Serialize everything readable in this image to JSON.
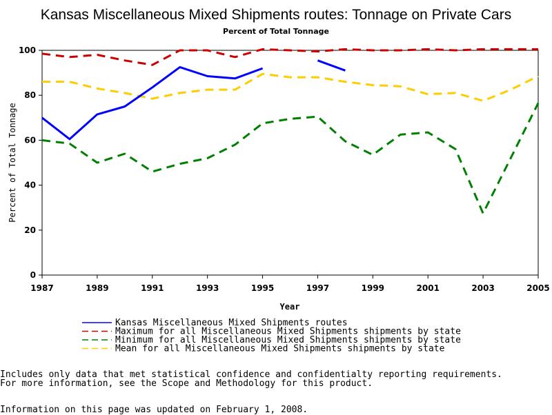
{
  "chart_data": {
    "type": "line",
    "title": "Kansas Miscellaneous Mixed Shipments routes: Tonnage on Private Cars",
    "subtitle": "Percent of Total Tonnage",
    "xlabel": "Year",
    "ylabel": "Percent of Total Tonnage",
    "xlim": [
      1987,
      2005
    ],
    "ylim": [
      0,
      100
    ],
    "x_ticks": [
      "1987",
      "1989",
      "1991",
      "1993",
      "1995",
      "1997",
      "1999",
      "2001",
      "2003",
      "2005"
    ],
    "y_ticks": [
      "0",
      "20",
      "40",
      "60",
      "80",
      "100"
    ],
    "grid": false,
    "legend_placement": "bottom",
    "x": [
      1987,
      1988,
      1989,
      1990,
      1991,
      1992,
      1993,
      1994,
      1995,
      1996,
      1997,
      1998,
      1999,
      2000,
      2001,
      2002,
      2003,
      2004,
      2005
    ],
    "series": [
      {
        "name": "Kansas Miscellaneous Mixed Shipments routes",
        "color": "#0000FF",
        "style": "solid",
        "values": [
          70,
          60.5,
          71.5,
          75,
          83.5,
          92.5,
          88.5,
          87.5,
          92,
          null,
          95.5,
          91,
          null,
          null,
          null,
          null,
          null,
          null,
          null
        ]
      },
      {
        "name": "Maximum for all Miscellaneous Mixed Shipments shipments by state",
        "color": "#CC0000",
        "style": "dashed",
        "values": [
          98.5,
          97,
          98,
          95.5,
          93.5,
          100,
          100,
          97,
          100.5,
          100,
          99.5,
          100.5,
          100,
          100,
          100.5,
          100,
          100.5,
          100.5,
          100.5
        ]
      },
      {
        "name": "Minimum for all Miscellaneous Mixed Shipments shipments by state",
        "color": "#008000",
        "style": "dashed",
        "values": [
          60,
          58.5,
          50,
          54,
          46,
          49.5,
          52,
          58,
          67.5,
          69.5,
          70.5,
          59.5,
          53.5,
          62.5,
          63.5,
          56,
          27.5,
          52,
          76.5
        ]
      },
      {
        "name": "Mean for all Miscellaneous Mixed Shipments shipments by state",
        "color": "#FFCC00",
        "style": "dashed",
        "values": [
          86,
          86,
          83,
          81,
          78.5,
          81,
          82.5,
          82.5,
          89.5,
          88,
          88,
          86,
          84.5,
          84,
          80.5,
          81,
          77.5,
          82.5,
          88.5
        ]
      }
    ]
  },
  "notes": {
    "line1": "Includes only data that met statistical confidence and confidentialty reporting requirements.",
    "line2": "For more information, see the Scope and Methodology for this product.",
    "updated": "Information on this page was updated on February 1, 2008."
  }
}
